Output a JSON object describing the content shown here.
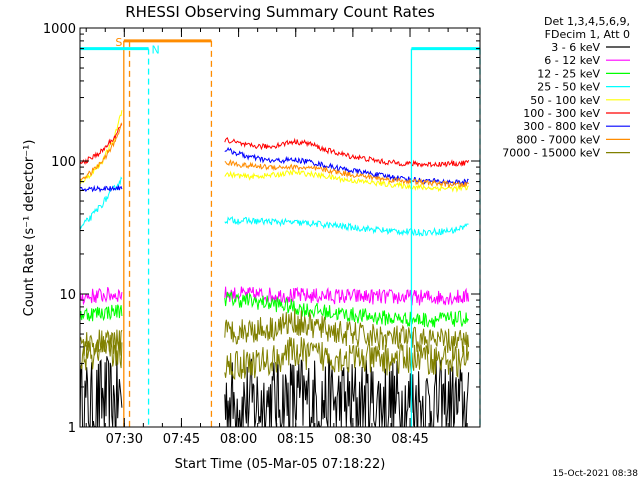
{
  "chart_data": {
    "type": "line",
    "title": "RHESSI Observing Summary Count Rates",
    "xlabel": "Start Time (05-Mar-05 07:18:22)",
    "ylabel": "Count Rate (s⁻¹ detector⁻¹)",
    "y_scale": "log",
    "ylim": [
      1,
      1000
    ],
    "y_ticks": [
      "1",
      "10",
      "100",
      "1000"
    ],
    "xlim_minutes": [
      0,
      105
    ],
    "x_ticks": [
      {
        "label": "07:30",
        "minute": 11.63
      },
      {
        "label": "07:45",
        "minute": 26.63
      },
      {
        "label": "08:00",
        "minute": 41.63
      },
      {
        "label": "08:15",
        "minute": 56.63
      },
      {
        "label": "08:30",
        "minute": 71.63
      },
      {
        "label": "08:45",
        "minute": 86.63
      }
    ],
    "legend": {
      "header": [
        "Det 1,3,4,5,6,9,",
        "FDecim 1, Att 0"
      ],
      "placement": "right"
    },
    "series": [
      {
        "name": "3 - 6 keV",
        "color": "#000000",
        "segments": [
          {
            "x": [
              0,
              3,
              6,
              9,
              11
            ],
            "y": [
              1.5,
              1.4,
              1.6,
              1.5,
              1.7
            ],
            "noise": 0.35
          },
          {
            "x": [
              38,
              48,
              58,
              68,
              78,
              88,
              102
            ],
            "y": [
              1.5,
              1.5,
              1.6,
              1.5,
              1.5,
              1.5,
              1.4
            ],
            "noise": 0.35
          }
        ]
      },
      {
        "name": "6 - 12 keV",
        "color": "#ff00ff",
        "segments": [
          {
            "x": [
              0,
              11
            ],
            "y": [
              9.5,
              10
            ],
            "noise": 0.06
          },
          {
            "x": [
              38,
              50,
              60,
              70,
              80,
              90,
              102
            ],
            "y": [
              10,
              9.8,
              9.7,
              9.6,
              9.5,
              9.4,
              9.5
            ],
            "noise": 0.06
          }
        ]
      },
      {
        "name": "12 - 25 keV",
        "color": "#00ff00",
        "segments": [
          {
            "x": [
              0,
              11
            ],
            "y": [
              7,
              7.5
            ],
            "noise": 0.06
          },
          {
            "x": [
              38,
              50,
              60,
              70,
              80,
              90,
              102
            ],
            "y": [
              9.3,
              8.5,
              7.6,
              7,
              6.6,
              6.4,
              6.5
            ],
            "noise": 0.06
          }
        ]
      },
      {
        "name": "25 - 50 keV",
        "color": "#00ffff",
        "segments": [
          {
            "x": [
              0,
              3,
              6,
              9,
              11
            ],
            "y": [
              31,
              38,
              48,
              62,
              73
            ],
            "noise": 0.025
          },
          {
            "x": [
              38,
              50,
              60,
              70,
              80,
              90,
              98,
              102
            ],
            "y": [
              36,
              35,
              34,
              32,
              30,
              29,
              30,
              33
            ],
            "noise": 0.025
          }
        ]
      },
      {
        "name": "50 - 100 keV",
        "color": "#ffff00",
        "segments": [
          {
            "x": [
              0,
              3,
              6,
              9,
              11
            ],
            "y": [
              68,
              80,
              100,
              145,
              240
            ],
            "noise": 0.02
          },
          {
            "x": [
              38,
              44,
              50,
              56,
              60,
              64,
              70,
              80,
              90,
              100,
              102
            ],
            "y": [
              80,
              76,
              78,
              82,
              80,
              77,
              72,
              67,
              63,
              62,
              63
            ],
            "noise": 0.02
          }
        ]
      },
      {
        "name": "100 - 300 keV",
        "color": "#ff0000",
        "segments": [
          {
            "x": [
              0,
              3,
              6,
              9,
              11
            ],
            "y": [
              95,
              105,
              120,
              150,
              185
            ],
            "noise": 0.02
          },
          {
            "x": [
              38,
              44,
              50,
              56,
              60,
              64,
              70,
              80,
              90,
              100,
              102
            ],
            "y": [
              145,
              130,
              128,
              140,
              136,
              122,
              110,
              98,
              94,
              96,
              98
            ],
            "noise": 0.02
          }
        ]
      },
      {
        "name": "300 - 800 keV",
        "color": "#0000ff",
        "segments": [
          {
            "x": [
              0,
              11
            ],
            "y": [
              61,
              63
            ],
            "noise": 0.02
          },
          {
            "x": [
              38,
              44,
              50,
              56,
              60,
              64,
              70,
              80,
              90,
              100,
              102
            ],
            "y": [
              122,
              108,
              100,
              102,
              99,
              93,
              86,
              77,
              71,
              69,
              70
            ],
            "noise": 0.02
          }
        ]
      },
      {
        "name": "800 - 7000 keV",
        "color": "#ff8c00",
        "segments": [
          {
            "x": [
              0,
              3,
              6,
              9,
              11
            ],
            "y": [
              72,
              82,
              100,
              135,
              190
            ],
            "noise": 0.02
          },
          {
            "x": [
              38,
              44,
              50,
              56,
              60,
              64,
              70,
              80,
              90,
              100,
              102
            ],
            "y": [
              98,
              92,
              90,
              90,
              88,
              86,
              80,
              73,
              69,
              66,
              67
            ],
            "noise": 0.02
          }
        ]
      },
      {
        "name": "7000 - 15000 keV",
        "color": "#808000",
        "segments": [
          {
            "x": [
              0,
              11
            ],
            "y": [
              4.3,
              4.3
            ],
            "noise": 0.1
          },
          {
            "x": [
              0,
              11
            ],
            "y": [
              3.3,
              3.6
            ],
            "noise": 0.12
          },
          {
            "x": [
              38,
              50,
              56,
              60,
              70,
              80,
              90,
              102
            ],
            "y": [
              5.2,
              5.5,
              6.2,
              5.8,
              5,
              4.7,
              4.5,
              4.3
            ],
            "noise": 0.1
          },
          {
            "x": [
              38,
              50,
              56,
              60,
              70,
              80,
              90,
              102
            ],
            "y": [
              2.9,
              3.1,
              3.7,
              3.5,
              3.3,
              3.2,
              3.3,
              3.1
            ],
            "noise": 0.12
          }
        ]
      }
    ],
    "flags": [
      {
        "label": "S",
        "color": "#ff8c00",
        "x_start": 11.5,
        "x_end": 34.5,
        "y": 800
      },
      {
        "label": "N",
        "color": "#00ffff",
        "x_start": 0,
        "x_end": 18,
        "y": 700
      },
      {
        "label": "",
        "color": "#00ffff",
        "x_start": 87,
        "x_end": 105,
        "y": 700
      }
    ],
    "vertical_lines": [
      {
        "x": 11.5,
        "color": "#ff8c00",
        "style": "solid",
        "y_top": 800
      },
      {
        "x": 13,
        "color": "#ff8c00",
        "style": "dashed",
        "y_top": 800
      },
      {
        "x": 34.5,
        "color": "#ff8c00",
        "style": "dashed",
        "y_top": 800
      },
      {
        "x": 18,
        "color": "#00ffff",
        "style": "dashed",
        "y_top": 700
      },
      {
        "x": 87,
        "color": "#00ffff",
        "style": "solid",
        "y_top": 700
      },
      {
        "x": 105,
        "color": "#00ffff",
        "style": "dashed",
        "y_top": 700
      }
    ],
    "footer_timestamp": "15-Oct-2021 08:38"
  }
}
